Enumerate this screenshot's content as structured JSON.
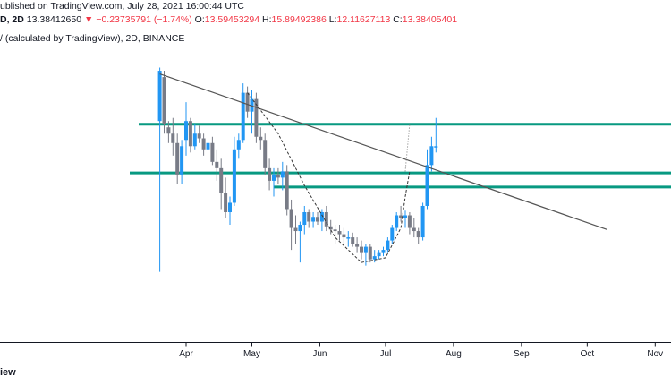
{
  "header": {
    "published": "ublished on TradingView.com, July 28, 2021 16:00:44 UTC",
    "symbol_tail": "D, 2D",
    "last": "13.38412650",
    "change": "▼ −0.23735791 (−1.74%)",
    "o_label": "O:",
    "o_value": "13.59453294",
    "h_label": "H:",
    "h_value": "15.89492386",
    "l_label": "L:",
    "l_value": "12.11627113",
    "c_label": "C:",
    "c_value": "13.38405401",
    "subtitle": "/ (calculated by TradingView), 2D, BINANCE"
  },
  "footer": {
    "brand": "iew"
  },
  "colors": {
    "up": "#2196f3",
    "down": "#787b86",
    "level": "#089981",
    "trend": "#555555",
    "axis_text": "#131722",
    "neg": "#f23645"
  },
  "chart_data": {
    "type": "candlestick",
    "interval": "2D",
    "x_ticks": [
      "Apr",
      "May",
      "Jun",
      "Jul",
      "Aug",
      "Sep",
      "Oct",
      "Nov"
    ],
    "ylim": [
      7.5,
      23.0
    ],
    "horizontal_levels": [
      18.4,
      15.3,
      14.4
    ],
    "trendline": {
      "from": [
        "Mar 20",
        21.6
      ],
      "to": [
        "Oct 10",
        11.7
      ]
    },
    "cup_pattern": "dashed curve from late April peak to July 10",
    "projection_target": 18.4,
    "candles": [
      {
        "d": "Mar 20",
        "o": 18.6,
        "h": 22.0,
        "l": 9.0,
        "c": 21.8
      },
      {
        "d": "Mar 22",
        "o": 21.4,
        "h": 21.8,
        "l": 17.8,
        "c": 18.4
      },
      {
        "d": "Mar 24",
        "o": 18.2,
        "h": 18.6,
        "l": 17.2,
        "c": 17.8
      },
      {
        "d": "Mar 26",
        "o": 17.8,
        "h": 18.8,
        "l": 16.4,
        "c": 17.2
      },
      {
        "d": "Mar 28",
        "o": 17.2,
        "h": 17.8,
        "l": 14.6,
        "c": 15.2
      },
      {
        "d": "Mar 30",
        "o": 15.2,
        "h": 17.4,
        "l": 14.6,
        "c": 17.0
      },
      {
        "d": "Apr 1",
        "o": 17.4,
        "h": 19.8,
        "l": 16.4,
        "c": 18.6
      },
      {
        "d": "Apr 3",
        "o": 18.6,
        "h": 18.8,
        "l": 16.6,
        "c": 17.0
      },
      {
        "d": "Apr 5",
        "o": 17.0,
        "h": 18.4,
        "l": 16.8,
        "c": 17.8
      },
      {
        "d": "Apr 7",
        "o": 17.8,
        "h": 18.3,
        "l": 17.2,
        "c": 17.5
      },
      {
        "d": "Apr 9",
        "o": 17.5,
        "h": 17.8,
        "l": 16.4,
        "c": 16.8
      },
      {
        "d": "Apr 11",
        "o": 16.8,
        "h": 18.0,
        "l": 16.2,
        "c": 17.2
      },
      {
        "d": "Apr 13",
        "o": 17.2,
        "h": 17.6,
        "l": 15.8,
        "c": 16.0
      },
      {
        "d": "Apr 15",
        "o": 16.0,
        "h": 16.8,
        "l": 14.8,
        "c": 15.6
      },
      {
        "d": "Apr 17",
        "o": 15.6,
        "h": 16.2,
        "l": 13.0,
        "c": 14.0
      },
      {
        "d": "Apr 19",
        "o": 14.0,
        "h": 15.0,
        "l": 12.4,
        "c": 12.8
      },
      {
        "d": "Apr 21",
        "o": 12.8,
        "h": 13.8,
        "l": 12.0,
        "c": 13.4
      },
      {
        "d": "Apr 23",
        "o": 13.4,
        "h": 17.6,
        "l": 13.2,
        "c": 16.8
      },
      {
        "d": "Apr 25",
        "o": 16.8,
        "h": 17.8,
        "l": 16.2,
        "c": 17.4
      },
      {
        "d": "Apr 27",
        "o": 17.4,
        "h": 21.0,
        "l": 17.2,
        "c": 20.4
      },
      {
        "d": "Apr 29",
        "o": 20.4,
        "h": 20.8,
        "l": 18.8,
        "c": 19.2
      },
      {
        "d": "May 1",
        "o": 19.2,
        "h": 20.6,
        "l": 17.8,
        "c": 20.0
      },
      {
        "d": "May 3",
        "o": 20.0,
        "h": 20.4,
        "l": 17.2,
        "c": 17.6
      },
      {
        "d": "May 5",
        "o": 17.6,
        "h": 18.2,
        "l": 16.8,
        "c": 17.4
      },
      {
        "d": "May 7",
        "o": 17.4,
        "h": 17.8,
        "l": 15.2,
        "c": 15.6
      },
      {
        "d": "May 9",
        "o": 15.6,
        "h": 16.2,
        "l": 14.2,
        "c": 14.8
      },
      {
        "d": "May 11",
        "o": 14.8,
        "h": 15.6,
        "l": 13.8,
        "c": 15.2
      },
      {
        "d": "May 13",
        "o": 15.2,
        "h": 15.6,
        "l": 14.6,
        "c": 15.0
      },
      {
        "d": "May 15",
        "o": 15.0,
        "h": 16.0,
        "l": 14.2,
        "c": 15.4
      },
      {
        "d": "May 17",
        "o": 15.4,
        "h": 15.8,
        "l": 12.6,
        "c": 13.0
      },
      {
        "d": "May 19",
        "o": 13.0,
        "h": 13.6,
        "l": 10.4,
        "c": 11.8
      },
      {
        "d": "May 21",
        "o": 11.8,
        "h": 12.6,
        "l": 10.8,
        "c": 11.6
      },
      {
        "d": "May 23",
        "o": 11.6,
        "h": 12.2,
        "l": 9.6,
        "c": 12.0
      },
      {
        "d": "May 25",
        "o": 12.0,
        "h": 13.2,
        "l": 11.4,
        "c": 12.8
      },
      {
        "d": "May 27",
        "o": 12.8,
        "h": 13.0,
        "l": 11.8,
        "c": 12.2
      },
      {
        "d": "May 29",
        "o": 12.2,
        "h": 12.8,
        "l": 11.8,
        "c": 12.5
      },
      {
        "d": "May 31",
        "o": 12.5,
        "h": 12.8,
        "l": 12.0,
        "c": 12.2
      },
      {
        "d": "Jun 2",
        "o": 12.2,
        "h": 13.0,
        "l": 11.6,
        "c": 12.8
      },
      {
        "d": "Jun 4",
        "o": 12.8,
        "h": 13.2,
        "l": 11.6,
        "c": 11.9
      },
      {
        "d": "Jun 6",
        "o": 11.9,
        "h": 12.3,
        "l": 11.4,
        "c": 11.7
      },
      {
        "d": "Jun 8",
        "o": 11.7,
        "h": 12.0,
        "l": 10.8,
        "c": 11.6
      },
      {
        "d": "Jun 10",
        "o": 11.6,
        "h": 12.0,
        "l": 11.0,
        "c": 11.4
      },
      {
        "d": "Jun 12",
        "o": 11.4,
        "h": 11.8,
        "l": 10.8,
        "c": 11.2
      },
      {
        "d": "Jun 14",
        "o": 11.2,
        "h": 11.6,
        "l": 10.6,
        "c": 11.2
      },
      {
        "d": "Jun 16",
        "o": 11.2,
        "h": 11.5,
        "l": 10.6,
        "c": 10.8
      },
      {
        "d": "Jun 18",
        "o": 10.8,
        "h": 11.2,
        "l": 10.2,
        "c": 10.6
      },
      {
        "d": "Jun 20",
        "o": 10.6,
        "h": 11.0,
        "l": 9.8,
        "c": 10.2
      },
      {
        "d": "Jun 22",
        "o": 10.2,
        "h": 10.8,
        "l": 9.4,
        "c": 10.6
      },
      {
        "d": "Jun 24",
        "o": 10.6,
        "h": 10.8,
        "l": 9.6,
        "c": 9.8
      },
      {
        "d": "Jun 26",
        "o": 9.8,
        "h": 10.4,
        "l": 9.6,
        "c": 10.0
      },
      {
        "d": "Jun 28",
        "o": 10.0,
        "h": 10.4,
        "l": 9.8,
        "c": 10.2
      },
      {
        "d": "Jun 30",
        "o": 10.2,
        "h": 10.6,
        "l": 10.0,
        "c": 10.4
      },
      {
        "d": "Jul 2",
        "o": 10.4,
        "h": 11.2,
        "l": 10.2,
        "c": 11.0
      },
      {
        "d": "Jul 4",
        "o": 11.0,
        "h": 12.0,
        "l": 10.8,
        "c": 11.8
      },
      {
        "d": "Jul 6",
        "o": 11.8,
        "h": 12.8,
        "l": 11.6,
        "c": 12.6
      },
      {
        "d": "Jul 8",
        "o": 12.6,
        "h": 13.2,
        "l": 12.2,
        "c": 12.4
      },
      {
        "d": "Jul 10",
        "o": 12.4,
        "h": 12.9,
        "l": 11.8,
        "c": 12.6
      },
      {
        "d": "Jul 12",
        "o": 12.6,
        "h": 12.8,
        "l": 11.4,
        "c": 11.8
      },
      {
        "d": "Jul 14",
        "o": 11.8,
        "h": 12.4,
        "l": 11.2,
        "c": 11.6
      },
      {
        "d": "Jul 16",
        "o": 11.6,
        "h": 11.8,
        "l": 10.8,
        "c": 11.2
      },
      {
        "d": "Jul 18",
        "o": 11.2,
        "h": 13.4,
        "l": 11.0,
        "c": 13.2
      },
      {
        "d": "Jul 20",
        "o": 13.2,
        "h": 16.8,
        "l": 13.0,
        "c": 15.8
      },
      {
        "d": "Jul 22",
        "o": 15.8,
        "h": 17.6,
        "l": 15.4,
        "c": 17.0
      },
      {
        "d": "Jul 24",
        "o": 17.0,
        "h": 18.8,
        "l": 16.6,
        "c": 17.0
      }
    ]
  }
}
